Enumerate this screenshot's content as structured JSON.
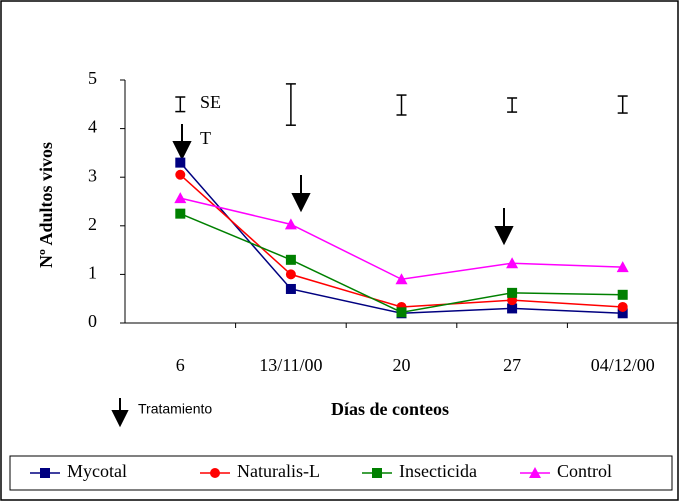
{
  "chart_data": {
    "type": "line",
    "x_label": "Días de conteos",
    "y_label": "Nº Adultos vivos",
    "categories": [
      "6",
      "13/11/00",
      "20",
      "27",
      "04/12/00"
    ],
    "ylim": [
      0,
      5
    ],
    "yticks": [
      0,
      1,
      2,
      3,
      4,
      5
    ],
    "series": [
      {
        "name": "Mycotal",
        "color": "#000080",
        "marker": "square",
        "values": [
          3.3,
          0.7,
          0.2,
          0.3,
          0.2
        ]
      },
      {
        "name": "Naturalis-L",
        "color": "#ff0000",
        "marker": "circle",
        "values": [
          3.05,
          1.0,
          0.33,
          0.47,
          0.33
        ]
      },
      {
        "name": "Insecticida",
        "color": "#008000",
        "marker": "square",
        "values": [
          2.25,
          1.3,
          0.22,
          0.62,
          0.58
        ]
      },
      {
        "name": "Control",
        "color": "#ff00ff",
        "marker": "triangle",
        "values": [
          2.57,
          2.03,
          0.9,
          1.23,
          1.15
        ]
      }
    ],
    "se_bars": [
      [
        4.35,
        4.65
      ],
      [
        4.07,
        4.92
      ],
      [
        4.28,
        4.69
      ],
      [
        4.34,
        4.63
      ],
      [
        4.32,
        4.67
      ]
    ],
    "se_label": "SE",
    "treatment_mark": "T",
    "treatment_legend": "Tratamiento"
  }
}
